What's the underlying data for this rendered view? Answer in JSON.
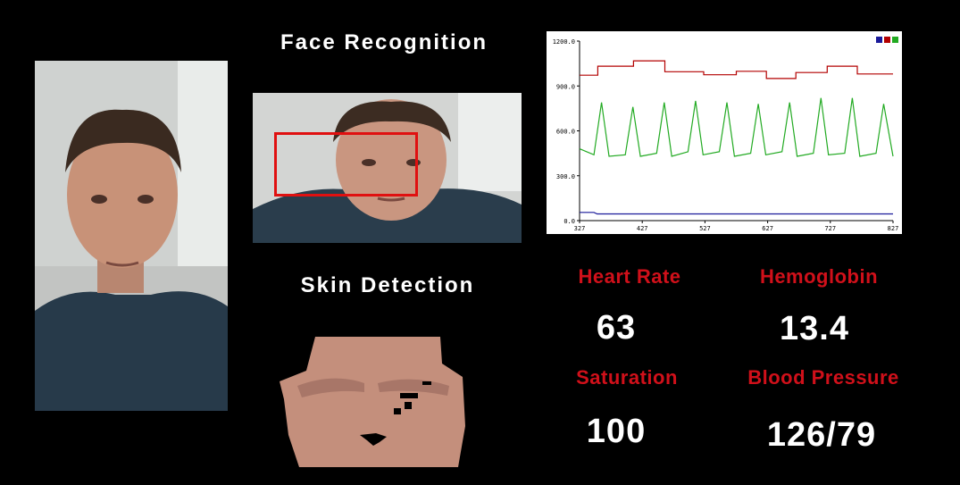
{
  "titles": {
    "face": "Face Recognition",
    "skin": "Skin Detection"
  },
  "metrics": {
    "heart_rate": {
      "label": "Heart Rate",
      "value": "63"
    },
    "hemoglobin": {
      "label": "Hemoglobin",
      "value": "13.4"
    },
    "saturation": {
      "label": "Saturation",
      "value": "100"
    },
    "blood_pressure": {
      "label": "Blood Pressure",
      "value": "126/79"
    }
  },
  "colors": {
    "label": "#d0101a",
    "red_series": "#b30000",
    "green_series": "#22aa22",
    "blue_series": "#1a1a9a"
  },
  "chart_data": {
    "type": "line",
    "x_ticks": [
      "327",
      "427",
      "527",
      "627",
      "727",
      "827"
    ],
    "y_ticks": [
      "0.0",
      "300.0",
      "600.0",
      "900.0",
      "1200.0"
    ],
    "xlim": [
      327,
      827
    ],
    "ylim": [
      0,
      1200
    ],
    "legend": "top-right",
    "series": [
      {
        "color": "#b30000",
        "x": [
          327,
          356,
          356,
          413,
          413,
          463,
          463,
          525,
          525,
          577,
          577,
          625,
          625,
          672,
          672,
          722,
          722,
          770,
          770,
          827
        ],
        "y": [
          972,
          972,
          1032,
          1032,
          1068,
          1068,
          995,
          995,
          975,
          975,
          998,
          998,
          950,
          950,
          990,
          990,
          1032,
          1032,
          980,
          980
        ]
      },
      {
        "color": "#22aa22",
        "x": [
          327,
          350,
          362,
          374,
          400,
          412,
          424,
          450,
          462,
          474,
          500,
          512,
          524,
          550,
          562,
          574,
          600,
          612,
          624,
          650,
          662,
          674,
          700,
          712,
          724,
          750,
          762,
          774,
          800,
          812,
          827
        ],
        "y": [
          480,
          440,
          790,
          430,
          440,
          760,
          430,
          450,
          790,
          430,
          460,
          800,
          440,
          460,
          790,
          430,
          450,
          780,
          440,
          460,
          790,
          430,
          450,
          820,
          440,
          450,
          820,
          430,
          450,
          780,
          430
        ]
      },
      {
        "color": "#1a1a9a",
        "x": [
          327,
          350,
          355,
          827
        ],
        "y": [
          55,
          55,
          45,
          45
        ]
      }
    ]
  }
}
